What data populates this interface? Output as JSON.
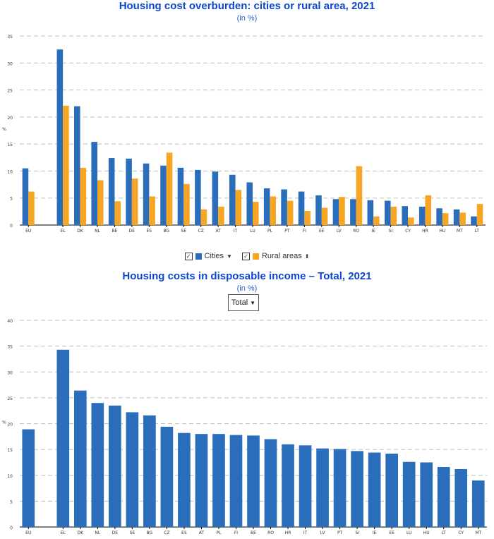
{
  "chart_data": [
    {
      "type": "bar",
      "title": "Housing cost overburden: cities or rural area, 2021",
      "subtitle": "(in %)",
      "ylabel": "%",
      "ylim": [
        0,
        35
      ],
      "yticks": [
        0,
        5,
        10,
        15,
        20,
        25,
        30,
        35
      ],
      "categories": [
        "EU",
        "EL",
        "DK",
        "NL",
        "BE",
        "DE",
        "ES",
        "BG",
        "SE",
        "CZ",
        "AT",
        "IT",
        "LU",
        "PL",
        "PT",
        "FI",
        "EE",
        "LV",
        "RO",
        "IE",
        "SI",
        "CY",
        "HR",
        "HU",
        "MT",
        "LT"
      ],
      "series": [
        {
          "name": "Cities",
          "color": "#2a6ebb",
          "values": [
            10.5,
            32.5,
            22.0,
            15.4,
            12.4,
            12.3,
            11.4,
            11.0,
            10.6,
            10.2,
            9.9,
            9.3,
            7.9,
            6.8,
            6.6,
            6.2,
            5.5,
            4.8,
            4.8,
            4.6,
            4.5,
            3.5,
            3.4,
            3.1,
            2.9,
            1.6
          ]
        },
        {
          "name": "Rural areas",
          "color": "#f6a623",
          "values": [
            6.2,
            22.1,
            10.6,
            8.3,
            4.4,
            8.6,
            5.3,
            13.4,
            7.6,
            2.9,
            3.4,
            6.5,
            4.3,
            5.3,
            4.5,
            2.6,
            3.2,
            5.2,
            10.9,
            1.6,
            3.4,
            1.4,
            5.5,
            2.2,
            2.3,
            3.9
          ]
        }
      ],
      "legend": {
        "position": "bottom",
        "items": [
          "Cities",
          "Rural areas"
        ]
      }
    },
    {
      "type": "bar",
      "title": "Housing costs in disposable income – Total, 2021",
      "subtitle": "(in %)",
      "ylabel": "%",
      "ylim": [
        0,
        40
      ],
      "yticks": [
        0,
        5,
        10,
        15,
        20,
        25,
        30,
        35,
        40
      ],
      "categories": [
        "EU",
        "EL",
        "DK",
        "NL",
        "DE",
        "SE",
        "BG",
        "CZ",
        "ES",
        "AT",
        "PL",
        "FI",
        "BE",
        "RO",
        "HR",
        "IT",
        "LV",
        "PT",
        "SI",
        "IE",
        "EE",
        "LU",
        "HU",
        "LT",
        "CY",
        "MT"
      ],
      "series": [
        {
          "name": "Total",
          "color": "#2a6ebb",
          "values": [
            18.9,
            34.3,
            26.4,
            24.0,
            23.5,
            22.2,
            21.6,
            19.4,
            18.2,
            18.0,
            18.0,
            17.8,
            17.7,
            17.0,
            16.0,
            15.8,
            15.2,
            15.1,
            14.7,
            14.4,
            14.2,
            12.6,
            12.5,
            11.6,
            11.2,
            9.0
          ]
        }
      ],
      "selector": {
        "selected": "Total"
      }
    }
  ]
}
